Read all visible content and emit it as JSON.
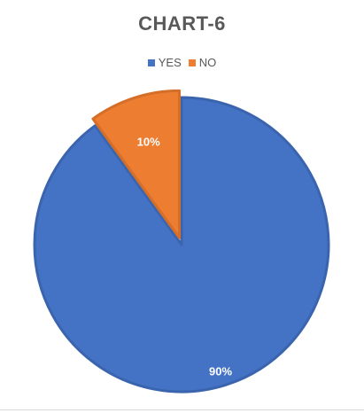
{
  "chart_data": {
    "type": "pie",
    "title": "CHART-6",
    "legend_position": "top",
    "categories": [
      "YES",
      "NO"
    ],
    "values": [
      90,
      10
    ],
    "data_labels": [
      "90%",
      "10%"
    ],
    "colors": [
      "#4472c4",
      "#ed7d31"
    ],
    "exploded_slice": "NO"
  }
}
